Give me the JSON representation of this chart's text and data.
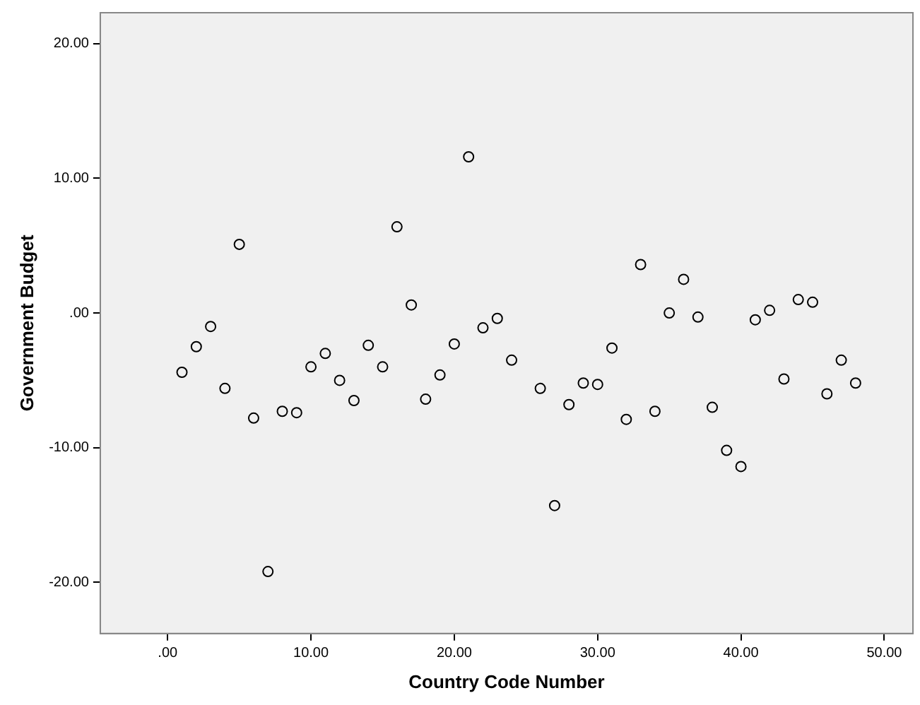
{
  "chart_data": {
    "type": "scatter",
    "xlabel": "Country Code Number",
    "ylabel": "Government Budget",
    "x": [
      1,
      2,
      3,
      4,
      5,
      6,
      7,
      8,
      9,
      10,
      11,
      12,
      13,
      14,
      15,
      16,
      17,
      18,
      19,
      20,
      21,
      22,
      23,
      24,
      26,
      27,
      28,
      29,
      30,
      31,
      32,
      33,
      34,
      35,
      36,
      37,
      38,
      39,
      40,
      41,
      42,
      43,
      44,
      45,
      46,
      47,
      48
    ],
    "series": [
      {
        "color": "#000000",
        "values": [
          -4.4,
          -2.5,
          -1.0,
          -5.6,
          5.1,
          -7.8,
          -19.2,
          -7.3,
          -7.4,
          -4.0,
          -3.0,
          -5.0,
          -6.5,
          -2.4,
          -4.0,
          6.4,
          0.6,
          -6.4,
          -4.6,
          -2.3,
          11.6,
          -1.1,
          -0.4,
          -3.5,
          -5.6,
          -14.3,
          -6.8,
          -5.2,
          -5.3,
          -2.6,
          -7.9,
          3.6,
          -7.3,
          0.0,
          2.5,
          -0.3,
          -7.0,
          -10.2,
          -11.4,
          -0.5,
          0.2,
          -4.9,
          1.0,
          0.8,
          -6.0,
          -3.5,
          -5.2
        ]
      }
    ],
    "xlim": [
      -4.7,
      52
    ],
    "ylim": [
      -23.8,
      22.3
    ],
    "xticks": [
      {
        "value": 0,
        "label": ".00"
      },
      {
        "value": 10,
        "label": "10.00"
      },
      {
        "value": 20,
        "label": "20.00"
      },
      {
        "value": 30,
        "label": "30.00"
      },
      {
        "value": 40,
        "label": "40.00"
      },
      {
        "value": 50,
        "label": "50.00"
      }
    ],
    "yticks": [
      {
        "value": -20,
        "label": "-20.00"
      },
      {
        "value": -10,
        "label": "-10.00"
      },
      {
        "value": 0,
        "label": ".00"
      },
      {
        "value": 10,
        "label": "10.00"
      },
      {
        "value": 20,
        "label": "20.00"
      }
    ],
    "marker": "circle",
    "grid": false,
    "legend": false
  }
}
